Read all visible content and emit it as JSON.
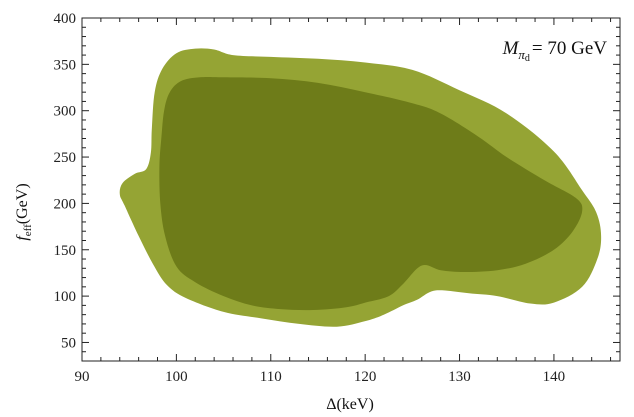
{
  "chart_data": {
    "type": "contour",
    "title": "",
    "annotation": {
      "symbol": "M",
      "subscript_base": "π",
      "subscript_sub": "d",
      "value": "= 70 GeV"
    },
    "xlabel": "Δ(keV)",
    "ylabel": {
      "base": "f",
      "sub": "eff",
      "rest": "(GeV)"
    },
    "xlim": [
      90,
      147
    ],
    "ylim": [
      30,
      400
    ],
    "x_ticks": [
      90,
      100,
      110,
      120,
      130,
      140
    ],
    "y_ticks": [
      50,
      100,
      150,
      200,
      250,
      300,
      350,
      400
    ],
    "x_tick_labels": [
      "90",
      "100",
      "110",
      "120",
      "130",
      "140"
    ],
    "y_tick_labels": [
      "50",
      "100",
      "150",
      "200",
      "250",
      "300",
      "350",
      "400"
    ],
    "grid": false,
    "regions": [
      {
        "level": "outer",
        "color": "#95a434",
        "points": [
          [
            94.0,
            210
          ],
          [
            94.3,
            222
          ],
          [
            95.6,
            232
          ],
          [
            96.8,
            237
          ],
          [
            97.3,
            255
          ],
          [
            97.4,
            280
          ],
          [
            97.7,
            320
          ],
          [
            98.5,
            345
          ],
          [
            100.0,
            362
          ],
          [
            102.0,
            367
          ],
          [
            104.0,
            366
          ],
          [
            106.0,
            360
          ],
          [
            110.0,
            358
          ],
          [
            115.0,
            356
          ],
          [
            120.0,
            352
          ],
          [
            125.0,
            344
          ],
          [
            130.0,
            322
          ],
          [
            135.0,
            297
          ],
          [
            140.0,
            256
          ],
          [
            143.0,
            214
          ],
          [
            144.5,
            190
          ],
          [
            145.0,
            165
          ],
          [
            144.6,
            140
          ],
          [
            143.0,
            110
          ],
          [
            140.0,
            93
          ],
          [
            137.5,
            92
          ],
          [
            134.0,
            100
          ],
          [
            131.0,
            103
          ],
          [
            128.5,
            106
          ],
          [
            127.0,
            105
          ],
          [
            125.5,
            96
          ],
          [
            124.0,
            90
          ],
          [
            122.0,
            80
          ],
          [
            120.0,
            73
          ],
          [
            117.0,
            67
          ],
          [
            113.0,
            70
          ],
          [
            109.0,
            76
          ],
          [
            105.0,
            83
          ],
          [
            101.0,
            98
          ],
          [
            99.0,
            112
          ],
          [
            97.5,
            135
          ],
          [
            96.0,
            165
          ],
          [
            94.5,
            198
          ]
        ]
      },
      {
        "level": "inner",
        "color": "#6e7c19",
        "points": [
          [
            98.4,
            270
          ],
          [
            98.7,
            300
          ],
          [
            99.3,
            320
          ],
          [
            100.5,
            332
          ],
          [
            102.5,
            336
          ],
          [
            105.0,
            336
          ],
          [
            110.0,
            335
          ],
          [
            115.0,
            330
          ],
          [
            120.0,
            320
          ],
          [
            125.0,
            308
          ],
          [
            128.0,
            297
          ],
          [
            132.0,
            272
          ],
          [
            135.0,
            250
          ],
          [
            139.0,
            225
          ],
          [
            142.3,
            206
          ],
          [
            143.0,
            192
          ],
          [
            142.0,
            170
          ],
          [
            140.0,
            150
          ],
          [
            137.0,
            135
          ],
          [
            134.0,
            128
          ],
          [
            130.5,
            126
          ],
          [
            128.0,
            128
          ],
          [
            126.0,
            133
          ],
          [
            124.0,
            113
          ],
          [
            122.5,
            100
          ],
          [
            120.0,
            93
          ],
          [
            118.0,
            88
          ],
          [
            114.5,
            85
          ],
          [
            111.0,
            86
          ],
          [
            108.0,
            90
          ],
          [
            105.0,
            100
          ],
          [
            102.0,
            115
          ],
          [
            100.0,
            132
          ],
          [
            98.8,
            165
          ],
          [
            98.3,
            200
          ],
          [
            98.2,
            240
          ]
        ]
      }
    ]
  }
}
